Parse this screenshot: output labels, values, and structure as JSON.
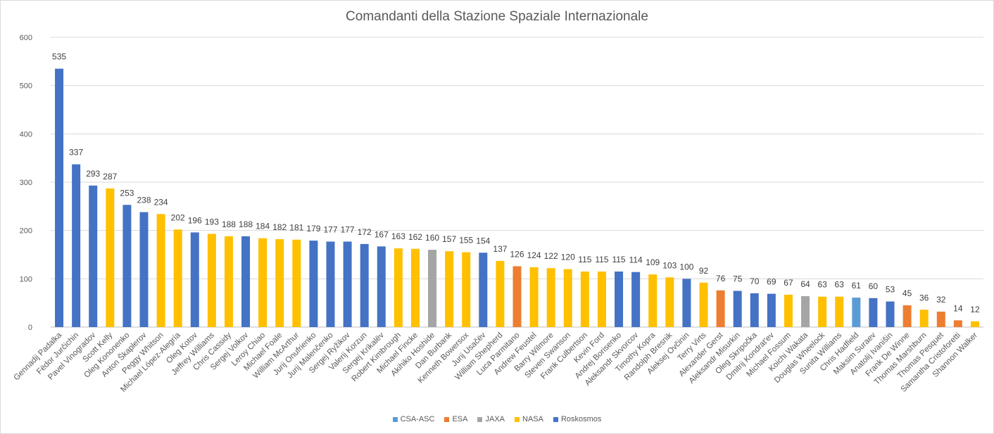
{
  "chart_data": {
    "type": "bar",
    "title": "Comandanti della Stazione Spaziale Internazionale",
    "ylim": [
      0,
      600
    ],
    "yticks": [
      0,
      100,
      200,
      300,
      400,
      500,
      600
    ],
    "grid": true,
    "legend_position": "bottom",
    "agencies": [
      {
        "name": "CSA-ASC",
        "color": "#5b9bd5"
      },
      {
        "name": "ESA",
        "color": "#ed7d31"
      },
      {
        "name": "JAXA",
        "color": "#a5a5a5"
      },
      {
        "name": "NASA",
        "color": "#ffc000"
      },
      {
        "name": "Roskosmos",
        "color": "#4472c4"
      }
    ],
    "categories": [
      "Gennadij Padalka",
      "Fëdor Jurčichin",
      "Pavel Vinogradov",
      "Scott Kelly",
      "Oleg Kononenko",
      "Anton Škaplerov",
      "Peggy Whitson",
      "Michael López-Alegría",
      "Oleg Kotov",
      "Jeffrey Williams",
      "Chris Cassidy",
      "Sergej Volkov",
      "Leroy Chiao",
      "Michael Foale",
      "William McArthur",
      "Jurij Onufrienko",
      "Jurij Malenčenko",
      "Sergej Ryžikov",
      "Valerij Korzun",
      "Sergej Krikalëv",
      "Robert Kimbrough",
      "Michael Fincke",
      "Akihiko Hoshide",
      "Dan Burbank",
      "Kenneth Bowersox",
      "Jurij Usačëv",
      "William Shepherd",
      "Luca Parmitano",
      "Andrew Feustel",
      "Barry Wilmore",
      "Steven Swanson",
      "Frank Culbertson",
      "Kevin Ford",
      "Andrej Borisenko",
      "Aleksandr Skvorcov",
      "Timothy Kopra",
      "Randolph Bresnik",
      "Aleksej Ovčinin",
      "Terry Virts",
      "Alexander Gerst",
      "Aleksandr Misurkin",
      "Oleg Skripočka",
      "Dmitrij Kondrat'ev",
      "Michael Fossum",
      "Koichi Wakata",
      "Douglas Wheelock",
      "Sunita Williams",
      "Chris Hadfield",
      "Maksim Suraev",
      "Anatolij Ivanišin",
      "Frank De Winne",
      "Thomas Marshburn",
      "Thomas Pesquet",
      "Samantha Cristoforetti",
      "Shannon Walker"
    ],
    "values": [
      535,
      337,
      293,
      287,
      253,
      238,
      234,
      202,
      196,
      193,
      188,
      188,
      184,
      182,
      181,
      179,
      177,
      177,
      172,
      167,
      163,
      162,
      160,
      157,
      155,
      154,
      137,
      126,
      124,
      122,
      120,
      115,
      115,
      115,
      114,
      109,
      103,
      100,
      92,
      76,
      75,
      70,
      69,
      67,
      64,
      63,
      63,
      61,
      60,
      53,
      45,
      36,
      32,
      14,
      12
    ],
    "agency_of_bar": [
      "Roskosmos",
      "Roskosmos",
      "Roskosmos",
      "NASA",
      "Roskosmos",
      "Roskosmos",
      "NASA",
      "NASA",
      "Roskosmos",
      "NASA",
      "NASA",
      "Roskosmos",
      "NASA",
      "NASA",
      "NASA",
      "Roskosmos",
      "Roskosmos",
      "Roskosmos",
      "Roskosmos",
      "Roskosmos",
      "NASA",
      "NASA",
      "JAXA",
      "NASA",
      "NASA",
      "Roskosmos",
      "NASA",
      "ESA",
      "NASA",
      "NASA",
      "NASA",
      "NASA",
      "NASA",
      "Roskosmos",
      "Roskosmos",
      "NASA",
      "NASA",
      "Roskosmos",
      "NASA",
      "ESA",
      "Roskosmos",
      "Roskosmos",
      "Roskosmos",
      "NASA",
      "JAXA",
      "NASA",
      "NASA",
      "CSA-ASC",
      "Roskosmos",
      "Roskosmos",
      "ESA",
      "NASA",
      "ESA",
      "ESA",
      "NASA"
    ]
  }
}
